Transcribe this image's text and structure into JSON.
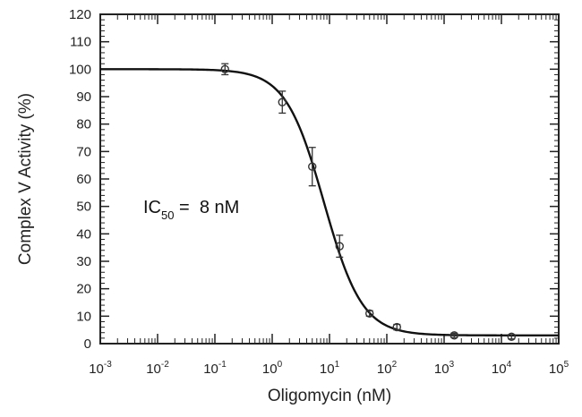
{
  "chart_data": {
    "type": "scatter",
    "xlabel": "Oligomycin (nM)",
    "ylabel": "Complex V Activity (%)",
    "x_scale": "log",
    "xlim": [
      0.001,
      100000
    ],
    "ylim": [
      0,
      120
    ],
    "x_ticks": [
      {
        "base": "10",
        "exp": "-3"
      },
      {
        "base": "10",
        "exp": "-2"
      },
      {
        "base": "10",
        "exp": "-1"
      },
      {
        "base": "10",
        "exp": "0"
      },
      {
        "base": "10",
        "exp": "1"
      },
      {
        "base": "10",
        "exp": "2"
      },
      {
        "base": "10",
        "exp": "3"
      },
      {
        "base": "10",
        "exp": "4"
      },
      {
        "base": "10",
        "exp": "5"
      }
    ],
    "y_ticks": [
      "0",
      "10",
      "20",
      "30",
      "40",
      "50",
      "60",
      "70",
      "80",
      "90",
      "100",
      "110",
      "120"
    ],
    "grid": false,
    "points": [
      {
        "x": 0.15,
        "y": 100,
        "err": 2
      },
      {
        "x": 1.5,
        "y": 88,
        "err": 4
      },
      {
        "x": 5,
        "y": 64.5,
        "err": 7
      },
      {
        "x": 15,
        "y": 35.5,
        "err": 4
      },
      {
        "x": 50,
        "y": 11,
        "err": 1
      },
      {
        "x": 150,
        "y": 6,
        "err": 1
      },
      {
        "x": 1500,
        "y": 3,
        "err": 0.8
      },
      {
        "x": 15000,
        "y": 2.5,
        "err": 0.8
      }
    ],
    "fit": {
      "top": 100,
      "bottom": 3,
      "ic50": 8,
      "hill": 1.3
    },
    "annotation": {
      "prefix": "IC",
      "subscript": "50",
      "value": " =  8 nM"
    },
    "colors": {
      "line": "#111111",
      "marker": "#333333",
      "axis": "#222222"
    }
  }
}
